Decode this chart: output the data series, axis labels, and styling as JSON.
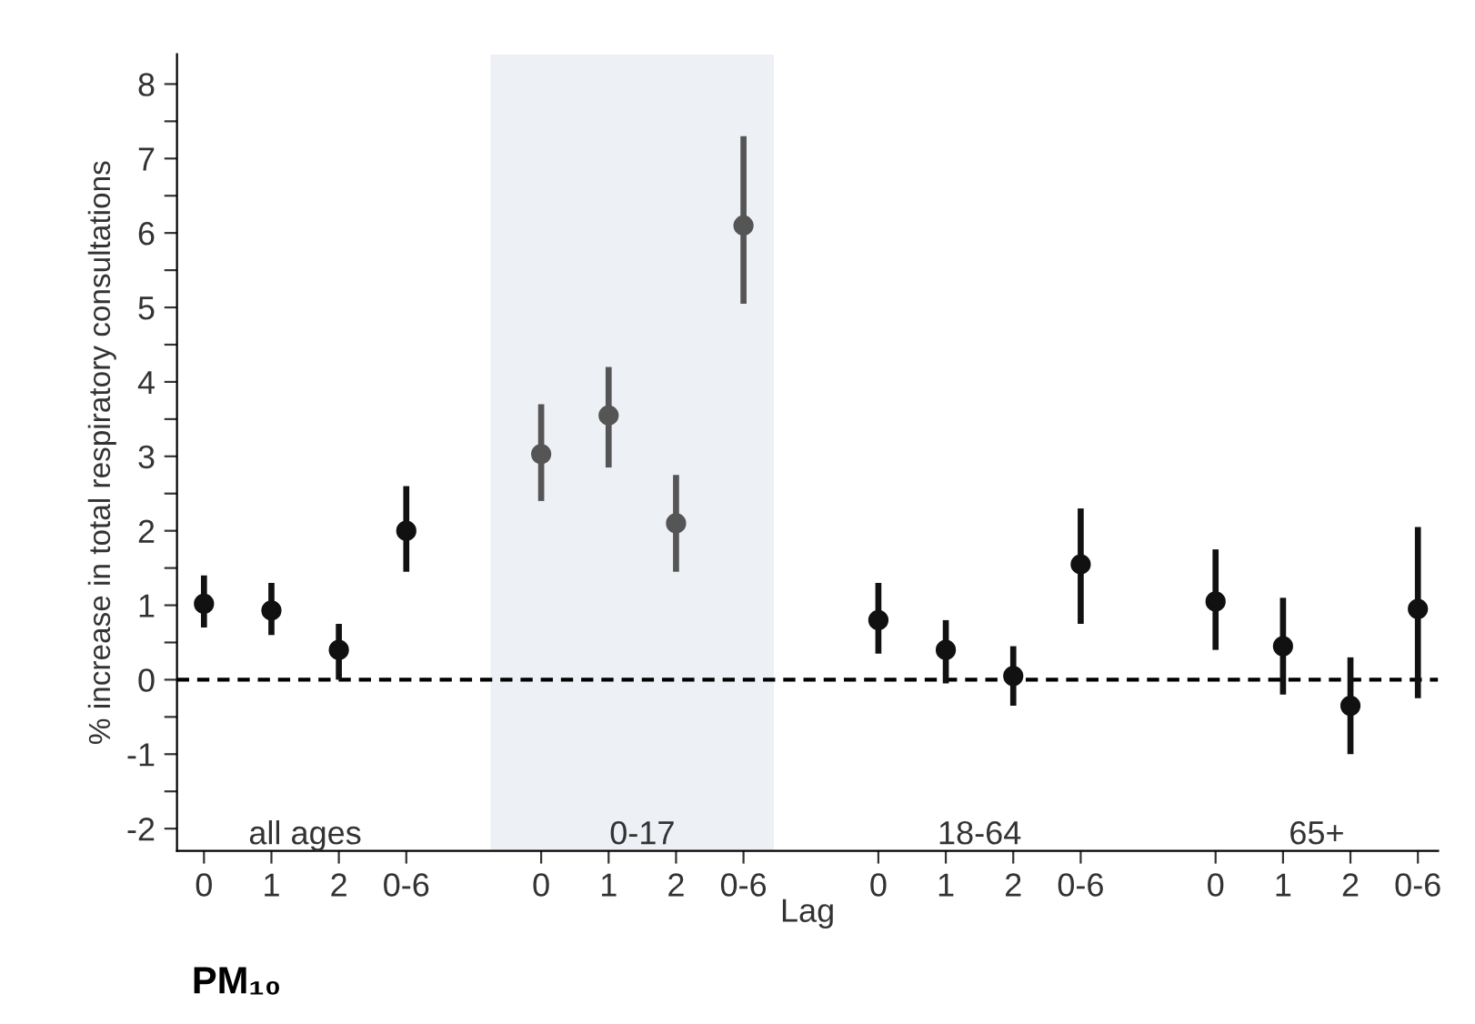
{
  "chart_data": {
    "type": "scatter",
    "title": "PM₁₀",
    "xlabel": "Lag",
    "ylabel": "% increase in total respiratory consultations",
    "categories": [
      "0",
      "1",
      "2",
      "0-6",
      null,
      "0",
      "1",
      "2",
      "0-6",
      null,
      "0",
      "1",
      "2",
      "0-6",
      null,
      "0",
      "1",
      "2",
      "0-6"
    ],
    "values": [
      1.02,
      0.93,
      0.4,
      2.0,
      null,
      3.03,
      3.55,
      2.1,
      6.1,
      null,
      0.8,
      0.4,
      0.05,
      1.55,
      null,
      1.05,
      0.45,
      -0.35,
      0.95
    ],
    "errors": [
      [
        0.7,
        1.4
      ],
      [
        0.6,
        1.3
      ],
      [
        0.0,
        0.75
      ],
      [
        1.45,
        2.6
      ],
      null,
      [
        2.4,
        3.7
      ],
      [
        2.85,
        4.2
      ],
      [
        1.45,
        2.75
      ],
      [
        5.05,
        7.3
      ],
      null,
      [
        0.35,
        1.3
      ],
      [
        -0.05,
        0.8
      ],
      [
        -0.35,
        0.45
      ],
      [
        0.75,
        2.3
      ],
      null,
      [
        0.4,
        1.75
      ],
      [
        -0.2,
        1.1
      ],
      [
        -1.0,
        0.3
      ],
      [
        -0.25,
        2.05
      ]
    ],
    "colors": [
      "#111111",
      "#111111",
      "#111111",
      "#111111",
      null,
      "#555555",
      "#555555",
      "#555555",
      "#555555",
      null,
      "#111111",
      "#111111",
      "#111111",
      "#111111",
      null,
      "#111111",
      "#111111",
      "#111111",
      "#111111"
    ],
    "annotations": [
      "all ages",
      "0-17",
      "18-64",
      "65+"
    ],
    "ref_lines": [
      {
        "axis": "y",
        "value": 0,
        "line_style": "dashed",
        "color": "#000000"
      }
    ],
    "marker": "circle",
    "ylim": [
      -2.3,
      8.4
    ],
    "yticks": [
      -2,
      {
        "value": -1.5,
        "label": null
      },
      -1,
      {
        "value": -0.5,
        "label": null
      },
      0,
      {
        "value": 0.5,
        "label": null
      },
      1,
      {
        "value": 1.5,
        "label": null
      },
      2,
      {
        "value": 2.5,
        "label": null
      },
      3,
      {
        "value": 3.5,
        "label": null
      },
      4,
      {
        "value": 4.5,
        "label": null
      },
      5,
      {
        "value": 5.5,
        "label": null
      },
      6,
      {
        "value": 6.5,
        "label": null
      },
      7,
      {
        "value": 7.5,
        "label": null
      },
      8
    ],
    "grid": false,
    "legend": false
  }
}
